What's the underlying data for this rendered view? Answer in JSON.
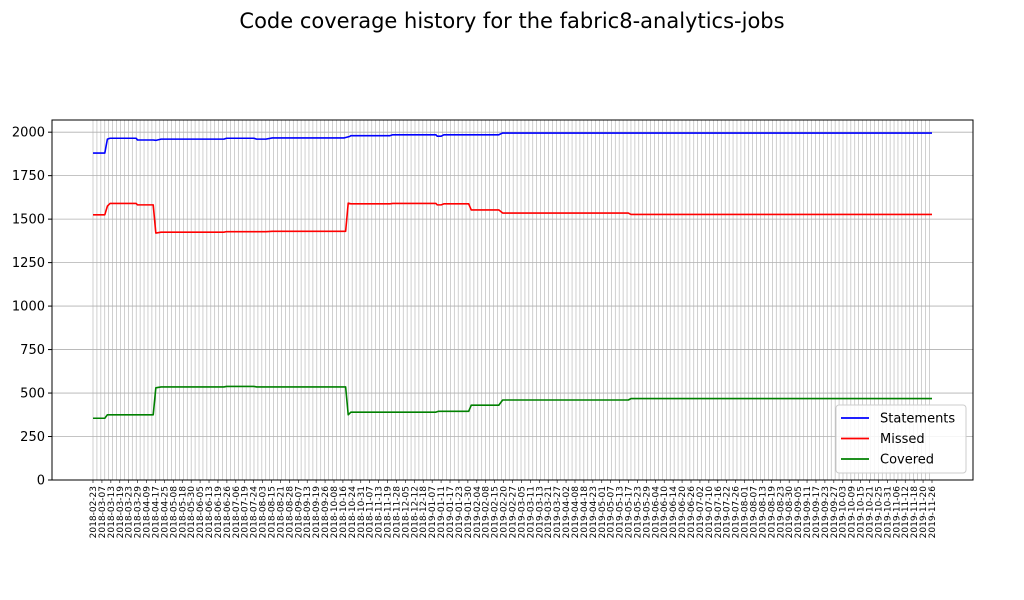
{
  "chart_data": {
    "type": "line",
    "title": "Code coverage history for the fabric8-analytics-jobs",
    "xlabel": "",
    "ylabel": "",
    "ylim": [
      0,
      2070
    ],
    "y_ticks": [
      0,
      250,
      500,
      750,
      1000,
      1250,
      1500,
      1750,
      2000
    ],
    "grid": true,
    "legend_position": "lower-right",
    "x_start": "2018-02-23",
    "x_end": "2019-11-26",
    "x_tick_labels": [
      "2018-02-23",
      "2018-03-07",
      "2018-03-13",
      "2018-03-19",
      "2018-03-23",
      "2018-03-29",
      "2018-04-09",
      "2018-04-17",
      "2018-04-25",
      "2018-05-08",
      "2018-05-18",
      "2018-05-30",
      "2018-06-05",
      "2018-06-13",
      "2018-06-19",
      "2018-06-26",
      "2018-07-06",
      "2018-07-19",
      "2018-07-24",
      "2018-08-03",
      "2018-08-15",
      "2018-08-21",
      "2018-08-28",
      "2018-09-07",
      "2018-09-13",
      "2018-09-19",
      "2018-09-26",
      "2018-10-08",
      "2018-10-16",
      "2018-10-24",
      "2018-10-31",
      "2018-11-07",
      "2018-11-13",
      "2018-11-19",
      "2018-11-28",
      "2018-12-05",
      "2018-12-12",
      "2018-12-18",
      "2019-01-07",
      "2019-01-11",
      "2019-01-17",
      "2019-01-23",
      "2019-01-30",
      "2019-02-04",
      "2019-02-08",
      "2019-02-15",
      "2019-02-20",
      "2019-02-27",
      "2019-03-05",
      "2019-03-11",
      "2019-03-13",
      "2019-03-21",
      "2019-03-27",
      "2019-04-02",
      "2019-04-08",
      "2019-04-18",
      "2019-04-23",
      "2019-05-01",
      "2019-05-07",
      "2019-05-13",
      "2019-05-17",
      "2019-05-23",
      "2019-05-29",
      "2019-06-04",
      "2019-06-10",
      "2019-06-14",
      "2019-06-20",
      "2019-06-26",
      "2019-07-02",
      "2019-07-10",
      "2019-07-16",
      "2019-07-22",
      "2019-07-26",
      "2019-08-01",
      "2019-08-07",
      "2019-08-13",
      "2019-08-19",
      "2019-08-23",
      "2019-08-30",
      "2019-09-05",
      "2019-09-11",
      "2019-09-17",
      "2019-09-23",
      "2019-09-27",
      "2019-10-03",
      "2019-10-09",
      "2019-10-15",
      "2019-10-21",
      "2019-10-25",
      "2019-10-31",
      "2019-11-06",
      "2019-11-12",
      "2019-11-18",
      "2019-11-20",
      "2019-11-26"
    ],
    "series": [
      {
        "name": "Statements",
        "color": "#0000ff",
        "points": [
          [
            "2018-02-23",
            1880
          ],
          [
            "2018-03-04",
            1880
          ],
          [
            "2018-03-06",
            1960
          ],
          [
            "2018-03-08",
            1965
          ],
          [
            "2018-03-28",
            1965
          ],
          [
            "2018-03-29",
            1955
          ],
          [
            "2018-04-10",
            1955
          ],
          [
            "2018-04-12",
            1953
          ],
          [
            "2018-04-16",
            1960
          ],
          [
            "2018-06-03",
            1960
          ],
          [
            "2018-06-05",
            1965
          ],
          [
            "2018-06-26",
            1965
          ],
          [
            "2018-06-28",
            1960
          ],
          [
            "2018-07-05",
            1960
          ],
          [
            "2018-07-10",
            1967
          ],
          [
            "2018-09-03",
            1967
          ],
          [
            "2018-09-07",
            1975
          ],
          [
            "2018-09-08",
            1980
          ],
          [
            "2018-10-08",
            1980
          ],
          [
            "2018-10-10",
            1985
          ],
          [
            "2018-11-12",
            1985
          ],
          [
            "2018-11-13",
            1977
          ],
          [
            "2018-11-16",
            1977
          ],
          [
            "2018-11-18",
            1985
          ],
          [
            "2018-12-30",
            1985
          ],
          [
            "2019-01-02",
            1995
          ],
          [
            "2019-11-26",
            1995
          ]
        ]
      },
      {
        "name": "Missed",
        "color": "#ff0000",
        "points": [
          [
            "2018-02-23",
            1525
          ],
          [
            "2018-03-04",
            1525
          ],
          [
            "2018-03-06",
            1575
          ],
          [
            "2018-03-08",
            1590
          ],
          [
            "2018-03-28",
            1590
          ],
          [
            "2018-03-29",
            1582
          ],
          [
            "2018-04-10",
            1582
          ],
          [
            "2018-04-12",
            1420
          ],
          [
            "2018-04-16",
            1425
          ],
          [
            "2018-06-03",
            1425
          ],
          [
            "2018-06-05",
            1428
          ],
          [
            "2018-06-28",
            1428
          ],
          [
            "2018-07-05",
            1428
          ],
          [
            "2018-07-10",
            1430
          ],
          [
            "2018-09-04",
            1430
          ],
          [
            "2018-09-06",
            1592
          ],
          [
            "2018-09-08",
            1588
          ],
          [
            "2018-10-08",
            1588
          ],
          [
            "2018-10-10",
            1590
          ],
          [
            "2018-11-12",
            1590
          ],
          [
            "2018-11-13",
            1582
          ],
          [
            "2018-11-16",
            1582
          ],
          [
            "2018-11-18",
            1588
          ],
          [
            "2018-12-07",
            1588
          ],
          [
            "2018-12-09",
            1553
          ],
          [
            "2018-12-30",
            1553
          ],
          [
            "2019-01-02",
            1535
          ],
          [
            "2019-04-08",
            1535
          ],
          [
            "2019-04-10",
            1527
          ],
          [
            "2019-11-26",
            1527
          ]
        ]
      },
      {
        "name": "Covered",
        "color": "#008000",
        "points": [
          [
            "2018-02-23",
            355
          ],
          [
            "2018-03-04",
            355
          ],
          [
            "2018-03-06",
            375
          ],
          [
            "2018-04-10",
            375
          ],
          [
            "2018-04-12",
            530
          ],
          [
            "2018-04-16",
            535
          ],
          [
            "2018-06-03",
            535
          ],
          [
            "2018-06-05",
            538
          ],
          [
            "2018-06-26",
            538
          ],
          [
            "2018-06-28",
            535
          ],
          [
            "2018-09-04",
            535
          ],
          [
            "2018-09-06",
            375
          ],
          [
            "2018-09-08",
            390
          ],
          [
            "2018-11-12",
            390
          ],
          [
            "2018-11-14",
            395
          ],
          [
            "2018-12-07",
            395
          ],
          [
            "2018-12-09",
            430
          ],
          [
            "2018-12-30",
            430
          ],
          [
            "2019-01-02",
            460
          ],
          [
            "2019-04-08",
            460
          ],
          [
            "2019-04-10",
            468
          ],
          [
            "2019-11-26",
            468
          ]
        ]
      }
    ]
  }
}
